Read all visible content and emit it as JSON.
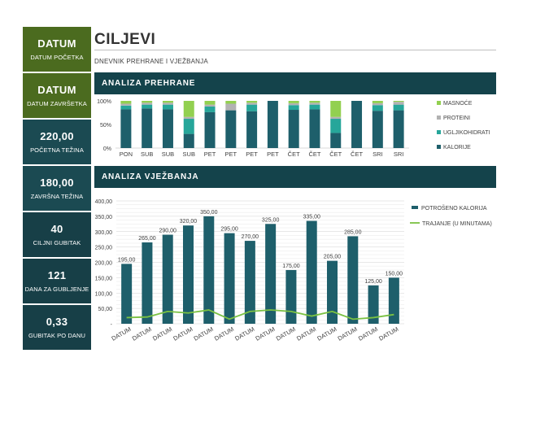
{
  "sidebar": {
    "tiles": [
      {
        "value": "DATUM",
        "label": "DATUM POČETKA"
      },
      {
        "value": "DATUM",
        "label": "DATUM ZAVRŠETKA"
      },
      {
        "value": "220,00",
        "label": "POČETNA TEŽINA"
      },
      {
        "value": "180,00",
        "label": "ZAVRŠNA TEŽINA"
      },
      {
        "value": "40",
        "label": "CILJNI GUBITAK"
      },
      {
        "value": "121",
        "label": "DANA ZA GUBLJENJE"
      },
      {
        "value": "0,33",
        "label": "GUBITAK PO DANU"
      }
    ]
  },
  "header": {
    "title": "CILJEVI",
    "subtitle": "DNEVNIK PREHRANE I VJEŽBANJA"
  },
  "sections": {
    "nutrition_title": "ANALIZA PREHRANE",
    "exercise_title": "ANALIZA VJEŽBANJA"
  },
  "colors": {
    "tile_green": "#4b6b1f",
    "tile_teal": "#1b4a52",
    "band": "#14434b",
    "kalorije": "#1e5f6b",
    "ugljikohidrati": "#26a69a",
    "proteini": "#b2b2b2",
    "masnoce": "#92d050",
    "trajanje": "#7ac142"
  },
  "chart_data": [
    {
      "type": "bar",
      "stacked": true,
      "percent": true,
      "title": "ANALIZA PREHRANE",
      "categories": [
        "PON",
        "SUB",
        "SUB",
        "SUB",
        "PET",
        "PET",
        "PET",
        "PET",
        "ČET",
        "ČET",
        "ČET",
        "ČET",
        "SRI",
        "SRI"
      ],
      "yticks": [
        "100%",
        "50%",
        "0%"
      ],
      "ylim": [
        0,
        100
      ],
      "series": [
        {
          "name": "KALORIJE",
          "color": "#1e5f6b",
          "values": [
            82,
            84,
            82,
            30,
            76,
            80,
            78,
            100,
            81,
            82,
            32,
            100,
            79,
            80
          ]
        },
        {
          "name": "UGLJIKOHIDRATI",
          "color": "#26a69a",
          "values": [
            8,
            8,
            10,
            32,
            12,
            0,
            14,
            0,
            10,
            10,
            30,
            0,
            12,
            12
          ]
        },
        {
          "name": "PROTEINI",
          "color": "#b2b2b2",
          "values": [
            4,
            4,
            4,
            4,
            4,
            14,
            4,
            0,
            4,
            4,
            4,
            0,
            4,
            6
          ]
        },
        {
          "name": "MASNOĆE",
          "color": "#92d050",
          "values": [
            6,
            4,
            4,
            34,
            8,
            6,
            4,
            0,
            5,
            4,
            34,
            0,
            5,
            2
          ]
        }
      ],
      "legend": [
        "MASNOĆE",
        "PROTEINI",
        "UGLJIKOHIDRATI",
        "KALORIJE"
      ],
      "legend_position": "right"
    },
    {
      "type": "bar",
      "title": "ANALIZA VJEŽBANJA",
      "categories": [
        "DATUM",
        "DATUM",
        "DATUM",
        "DATUM",
        "DATUM",
        "DATUM",
        "DATUM",
        "DATUM",
        "DATUM",
        "DATUM",
        "DATUM",
        "DATUM",
        "DATUM",
        "DATUM"
      ],
      "ylim": [
        0,
        400
      ],
      "yticks": [
        "400,00",
        "350,00",
        "300,00",
        "250,00",
        "200,00",
        "150,00",
        "100,00",
        "50,00",
        "-"
      ],
      "series": [
        {
          "name": "POTROŠENO KALORIJA",
          "type": "bar",
          "color": "#1e5f6b",
          "values": [
            195,
            265,
            290,
            320,
            350,
            295,
            270,
            325,
            175,
            335,
            205,
            285,
            125,
            150
          ],
          "labels": [
            "195,00",
            "265,00",
            "290,00",
            "320,00",
            "350,00",
            "295,00",
            "270,00",
            "325,00",
            "175,00",
            "335,00",
            "205,00",
            "285,00",
            "125,00",
            "150,00"
          ]
        },
        {
          "name": "TRAJANJE (U MINUTAMA)",
          "type": "line",
          "color": "#7ac142",
          "values": [
            20,
            22,
            40,
            35,
            45,
            15,
            40,
            45,
            40,
            25,
            40,
            15,
            20,
            30
          ]
        }
      ],
      "legend": [
        "POTROŠENO KALORIJA",
        "TRAJANJE (U MINUTAMA)"
      ],
      "legend_position": "right"
    }
  ]
}
